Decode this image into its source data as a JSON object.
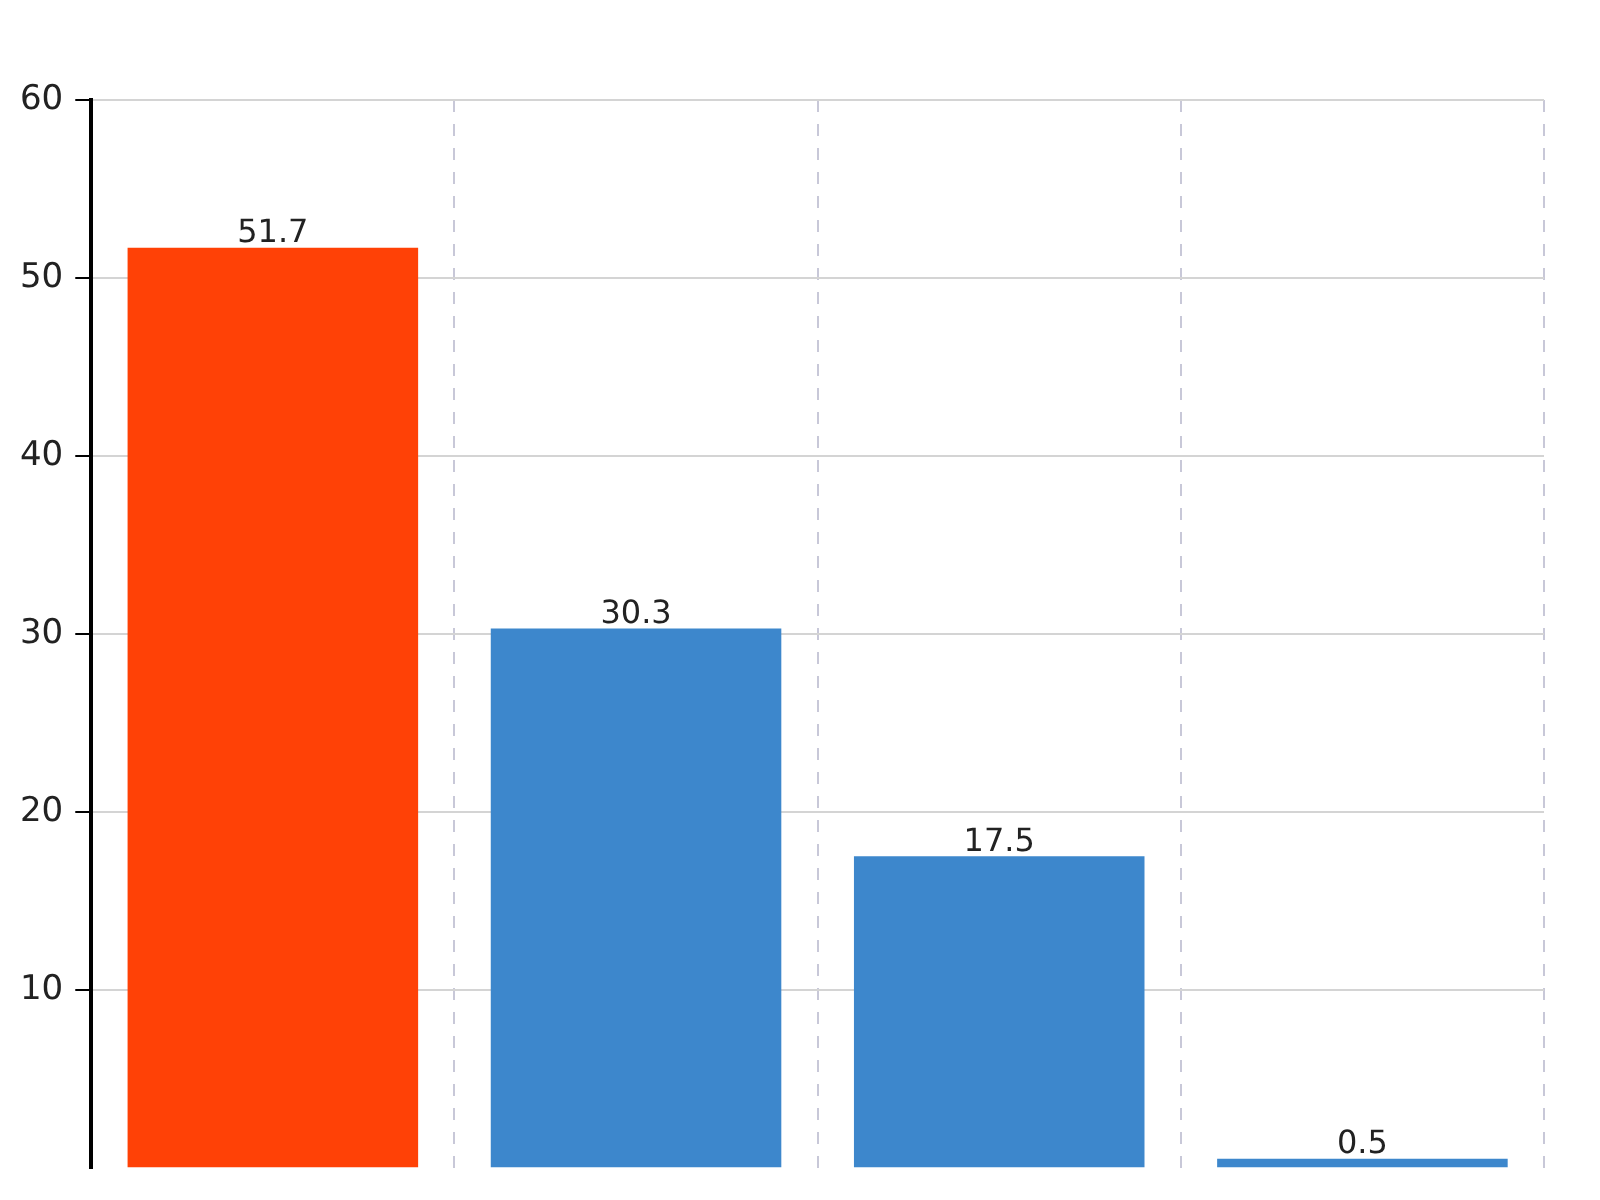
{
  "chart_data": {
    "type": "bar",
    "categories": [
      null,
      null,
      null,
      null
    ],
    "values": [
      51.7,
      30.3,
      17.5,
      0.5
    ],
    "colors": [
      "#ff4106",
      "#3d87cc",
      "#3d87cc",
      "#3d87cc"
    ],
    "ylim": [
      0,
      60
    ],
    "yticks": [
      10,
      20,
      30,
      40,
      50,
      60
    ],
    "grid": true,
    "data_labels": true,
    "legend": false
  }
}
